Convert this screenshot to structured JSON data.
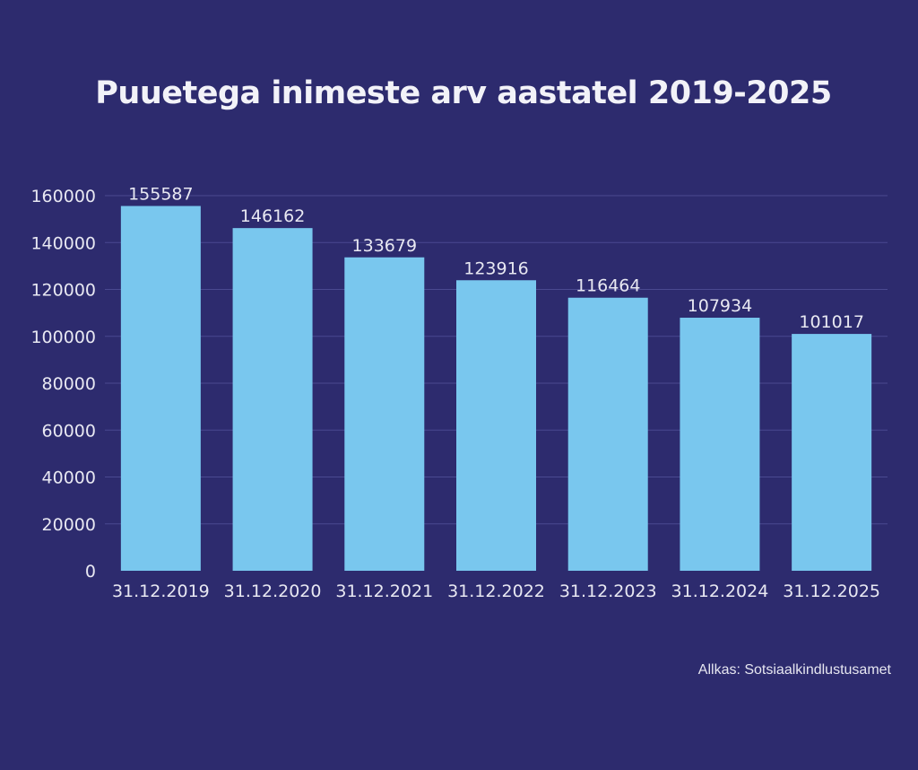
{
  "colors": {
    "background": "#2d2b6e",
    "bar": "#79c7ee",
    "grid": "#4a4990",
    "text": "#e8e8f2"
  },
  "chart_data": {
    "type": "bar",
    "title": "Puuetega inimeste arv aastatel 2019-2025",
    "categories": [
      "31.12.2019",
      "31.12.2020",
      "31.12.2021",
      "31.12.2022",
      "31.12.2023",
      "31.12.2024",
      "31.12.2025"
    ],
    "values": [
      155587,
      146162,
      133679,
      123916,
      116464,
      107934,
      101017
    ],
    "ylim": [
      0,
      160000
    ],
    "yticks": [
      0,
      20000,
      40000,
      60000,
      80000,
      100000,
      120000,
      140000,
      160000
    ],
    "xlabel": "",
    "ylabel": "",
    "grid": true,
    "data_labels": true,
    "legend": "none"
  },
  "source_note": "Allkas: Sotsiaalkindlustusamet"
}
